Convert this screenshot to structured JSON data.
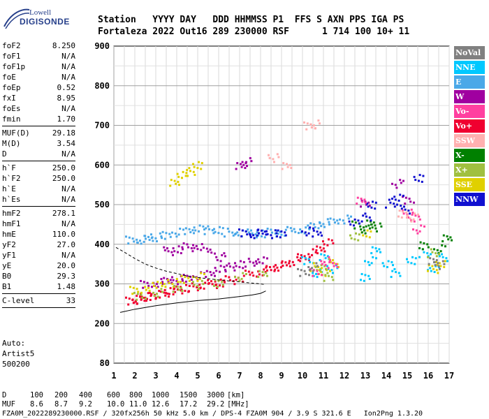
{
  "logo": {
    "line1": "Lowell",
    "line2": "DIGISONDE"
  },
  "header": {
    "labels": [
      "Station",
      "YYYY DAY",
      "DDD HHMMSS P1",
      "FFS S AXN PPS IGA PS"
    ],
    "values": [
      "Fortaleza",
      "2022 Out16",
      "289 230000 RSF",
      "1 714 100 10+ 11"
    ]
  },
  "params": [
    {
      "name": "foF2",
      "value": "8.250"
    },
    {
      "name": "foF1",
      "value": "N/A"
    },
    {
      "name": "foF1p",
      "value": "N/A"
    },
    {
      "name": "foE",
      "value": "N/A"
    },
    {
      "name": "foEp",
      "value": "0.52"
    },
    {
      "name": "fxI",
      "value": "8.95"
    },
    {
      "name": "foEs",
      "value": "N/A"
    },
    {
      "name": "fmin",
      "value": "1.70"
    },
    {
      "sep": true
    },
    {
      "name": "MUF(D)",
      "value": "29.18"
    },
    {
      "name": "M(D)",
      "value": "3.54"
    },
    {
      "name": "D",
      "value": "N/A"
    },
    {
      "sep": true
    },
    {
      "name": "h`F",
      "value": "250.0"
    },
    {
      "name": "h`F2",
      "value": "250.0"
    },
    {
      "name": "h`E",
      "value": "N/A"
    },
    {
      "name": "h`Es",
      "value": "N/A"
    },
    {
      "sep": true
    },
    {
      "name": "hmF2",
      "value": "278.1"
    },
    {
      "name": "hmF1",
      "value": "N/A"
    },
    {
      "name": "hmE",
      "value": "110.0"
    },
    {
      "name": "yF2",
      "value": "27.0"
    },
    {
      "name": "yF1",
      "value": "N/A"
    },
    {
      "name": "yE",
      "value": "20.0"
    },
    {
      "name": "B0",
      "value": "29.3"
    },
    {
      "name": "B1",
      "value": "1.48"
    },
    {
      "sep": true
    },
    {
      "name": "C-level",
      "value": "33"
    },
    {
      "sep": true
    }
  ],
  "auto": {
    "line1": "Auto:",
    "line2": "Artist5",
    "line3": "500200"
  },
  "legend": [
    {
      "name": "NoVal",
      "color": "#808080"
    },
    {
      "name": "NNE",
      "color": "#00c8ff"
    },
    {
      "name": "E",
      "color": "#4aa8e8"
    },
    {
      "name": "W",
      "color": "#a000a0"
    },
    {
      "name": "Vo-",
      "color": "#ff40a0"
    },
    {
      "name": "Vo+",
      "color": "#f00030"
    },
    {
      "name": "SSW",
      "color": "#ffb0b0"
    },
    {
      "name": "X-",
      "color": "#008000"
    },
    {
      "name": "X+",
      "color": "#a0c040"
    },
    {
      "name": "SSE",
      "color": "#e0d000"
    },
    {
      "name": "NNW",
      "color": "#1010d0"
    }
  ],
  "footer": {
    "d_label": "D",
    "d_values": [
      "100",
      "200",
      "400",
      "600",
      "800",
      "1000",
      "1500",
      "3000",
      "[km]"
    ],
    "muf_label": "MUF",
    "muf_values": [
      "8.6",
      "8.7",
      "9.2",
      "10.0",
      "11.0",
      "12.6",
      "17.2",
      "29.2",
      "[MHz]"
    ]
  },
  "caption": "FZA0M_2022289230000.RSF / 320fx256h 50 kHz 5.0 km / DPS-4 FZA0M 904 / 3.9 S 321.6 E   Ion2Png 1.3.20",
  "chart_data": {
    "type": "scatter",
    "xlim": [
      1,
      17
    ],
    "ylim": [
      80,
      900
    ],
    "x_ticks": [
      1,
      2,
      3,
      4,
      5,
      6,
      7,
      8,
      9,
      10,
      11,
      12,
      13,
      14,
      15,
      16,
      17
    ],
    "y_ticks": [
      80,
      200,
      300,
      400,
      500,
      600,
      700,
      800,
      900
    ],
    "grid": true,
    "series": [
      {
        "name": "Vo+",
        "color": "#f00030",
        "x": [
          1.8,
          2.0,
          2.2,
          2.5,
          2.8,
          3.0,
          3.3,
          3.6,
          4.0,
          4.4,
          4.8,
          5.2,
          5.6,
          6.0,
          6.5,
          7.0,
          7.5,
          8.0,
          8.4,
          8.8,
          9.2,
          9.6,
          10.0,
          10.4,
          10.8,
          11.2
        ],
        "y": [
          258,
          262,
          265,
          270,
          272,
          275,
          278,
          282,
          286,
          290,
          294,
          298,
          302,
          306,
          312,
          318,
          326,
          334,
          340,
          346,
          352,
          360,
          370,
          380,
          392,
          405
        ]
      },
      {
        "name": "W",
        "color": "#a000a0",
        "x": [
          2.5,
          3.0,
          3.5,
          4.0,
          4.5,
          5.0,
          5.5,
          6.0,
          6.5,
          7.0,
          7.5,
          8.0,
          3.5,
          4.0,
          4.5,
          5.0,
          5.5,
          6.0,
          7.0,
          7.3,
          13.0,
          14.5,
          15.0
        ],
        "y": [
          300,
          305,
          310,
          312,
          318,
          322,
          330,
          338,
          344,
          350,
          356,
          362,
          385,
          390,
          395,
          398,
          384,
          370,
          600,
          610,
          505,
          555,
          515
        ]
      },
      {
        "name": "E",
        "color": "#4aa8e8",
        "x": [
          1.8,
          2.2,
          2.6,
          3.0,
          3.5,
          4.0,
          4.5,
          5.0,
          5.5,
          6.0,
          6.5,
          7.0,
          7.5,
          8.0,
          8.5,
          9.0,
          9.5,
          10.0,
          10.5,
          11.0,
          11.5,
          12.0
        ],
        "y": [
          412,
          414,
          416,
          420,
          426,
          432,
          438,
          440,
          438,
          436,
          432,
          430,
          430,
          430,
          432,
          434,
          436,
          440,
          448,
          456,
          460,
          465
        ]
      },
      {
        "name": "NNE",
        "color": "#00c8ff",
        "x": [
          10.2,
          10.6,
          11.0,
          11.4,
          13.0,
          13.2,
          13.4,
          14.0,
          14.4,
          15.2,
          15.8,
          16.2,
          16.6
        ],
        "y": [
          360,
          330,
          370,
          340,
          320,
          360,
          390,
          350,
          330,
          360,
          380,
          340,
          370
        ]
      },
      {
        "name": "SSE",
        "color": "#e0d000",
        "x": [
          2.0,
          2.6,
          3.2,
          3.8,
          4.4,
          5.0,
          3.8,
          4.2,
          4.6,
          5.0,
          10.6,
          11.0,
          11.4,
          13.0,
          16.2,
          16.6
        ],
        "y": [
          285,
          295,
          300,
          305,
          315,
          320,
          560,
          575,
          585,
          600,
          345,
          330,
          355,
          430,
          340,
          355
        ]
      },
      {
        "name": "X-",
        "color": "#008000",
        "x": [
          12.6,
          12.9,
          13.2,
          13.5,
          15.8,
          16.5,
          16.8
        ],
        "y": [
          450,
          440,
          455,
          445,
          400,
          390,
          420
        ]
      },
      {
        "name": "X+",
        "color": "#a0c040",
        "x": [
          2.2,
          3.0,
          4.0,
          5.0,
          6.0,
          7.0,
          8.0,
          10.8,
          11.2,
          12.5,
          16.2
        ],
        "y": [
          270,
          280,
          290,
          300,
          305,
          320,
          330,
          340,
          320,
          420,
          380
        ]
      },
      {
        "name": "NNW",
        "color": "#1010d0",
        "x": [
          7.2,
          7.6,
          8.0,
          8.5,
          9.0,
          10.2,
          10.6,
          12.4,
          13.0,
          13.3,
          14.2,
          14.5,
          14.8,
          15.5
        ],
        "y": [
          430,
          428,
          432,
          428,
          430,
          435,
          432,
          455,
          470,
          500,
          505,
          520,
          490,
          570
        ]
      },
      {
        "name": "Vo-",
        "color": "#ff40a0",
        "x": [
          10.6,
          11.0,
          11.4,
          15.0,
          15.4,
          15.5,
          12.7
        ],
        "y": [
          330,
          360,
          350,
          480,
          470,
          440,
          515
        ]
      },
      {
        "name": "SSW",
        "color": "#ffb0b0",
        "x": [
          10.3,
          10.5,
          9.2,
          8.6,
          14.8,
          15.2
        ],
        "y": [
          700,
          705,
          600,
          620,
          480,
          470
        ]
      },
      {
        "name": "NoVal",
        "color": "#808080",
        "x": [
          10.0,
          10.4,
          16.2,
          16.5
        ],
        "y": [
          330,
          345,
          360,
          350
        ]
      }
    ],
    "profile_line": {
      "x": [
        1.3,
        2.0,
        3.0,
        4.0,
        5.0,
        6.0,
        7.0,
        7.6,
        8.0,
        8.25
      ],
      "y": [
        228,
        236,
        245,
        252,
        258,
        262,
        268,
        272,
        276,
        282
      ]
    },
    "profile_dashed": {
      "x": [
        1.1,
        1.5,
        2.0,
        2.5,
        3.0,
        3.5,
        4.0,
        4.5,
        5.0,
        6.0,
        7.0,
        8.0,
        8.25
      ],
      "y": [
        392,
        380,
        364,
        350,
        340,
        332,
        326,
        320,
        316,
        310,
        305,
        300,
        298
      ]
    }
  }
}
